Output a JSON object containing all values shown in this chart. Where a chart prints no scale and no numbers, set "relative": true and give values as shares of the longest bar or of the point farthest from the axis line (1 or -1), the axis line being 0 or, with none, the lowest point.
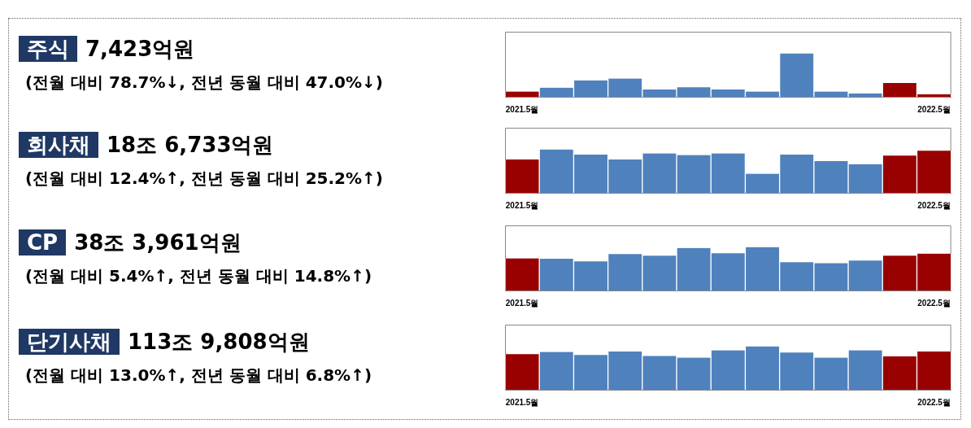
{
  "chart_data": [
    {
      "type": "bar",
      "annotations": [
        "주식",
        "7,423억원",
        "(전월 대비 78.7%↓, 전년 동월 대비 47.0%↓)"
      ],
      "relative": true,
      "categories": [
        "2021.5월",
        null,
        null,
        null,
        null,
        null,
        null,
        null,
        null,
        null,
        null,
        null,
        "2022.5월"
      ],
      "values": [
        0.12,
        0.21,
        0.38,
        0.42,
        0.17,
        0.22,
        0.17,
        0.12,
        1,
        0.12,
        0.08,
        0.32,
        0.06
      ],
      "colors": [
        "#990000",
        "#4f81bd",
        "#4f81bd",
        "#4f81bd",
        "#4f81bd",
        "#4f81bd",
        "#4f81bd",
        "#4f81bd",
        "#4f81bd",
        "#4f81bd",
        "#4f81bd",
        "#990000",
        "#990000"
      ]
    },
    {
      "type": "bar",
      "annotations": [
        "회사채",
        "18조 6,733억원",
        "(전월 대비 12.4%↑, 전년 동월 대비 25.2%↑)"
      ],
      "relative": true,
      "categories": [
        "2021.5월",
        null,
        null,
        null,
        null,
        null,
        null,
        null,
        null,
        null,
        null,
        null,
        "2022.5월"
      ],
      "values": [
        0.77,
        1,
        0.88,
        0.77,
        0.91,
        0.87,
        0.91,
        0.44,
        0.88,
        0.73,
        0.66,
        0.86,
        0.97
      ],
      "colors": [
        "#990000",
        "#4f81bd",
        "#4f81bd",
        "#4f81bd",
        "#4f81bd",
        "#4f81bd",
        "#4f81bd",
        "#4f81bd",
        "#4f81bd",
        "#4f81bd",
        "#4f81bd",
        "#990000",
        "#990000"
      ]
    },
    {
      "type": "bar",
      "annotations": [
        "CP",
        "38조 3,961억원",
        "(전월 대비 5.4%↑, 전년 동월 대비 14.8%↑)"
      ],
      "relative": true,
      "categories": [
        "2021.5월",
        null,
        null,
        null,
        null,
        null,
        null,
        null,
        null,
        null,
        null,
        null,
        "2022.5월"
      ],
      "values": [
        0.74,
        0.73,
        0.67,
        0.84,
        0.8,
        0.98,
        0.86,
        1,
        0.65,
        0.63,
        0.69,
        0.8,
        0.85
      ],
      "colors": [
        "#990000",
        "#4f81bd",
        "#4f81bd",
        "#4f81bd",
        "#4f81bd",
        "#4f81bd",
        "#4f81bd",
        "#4f81bd",
        "#4f81bd",
        "#4f81bd",
        "#4f81bd",
        "#990000",
        "#990000"
      ]
    },
    {
      "type": "bar",
      "annotations": [
        "단기사채",
        "113조 9,808억원",
        "(전월 대비 13.0%↑, 전년 동월 대비 6.8%↑)"
      ],
      "relative": true,
      "categories": [
        "2021.5월",
        null,
        null,
        null,
        null,
        null,
        null,
        null,
        null,
        null,
        null,
        null,
        "2022.5월"
      ],
      "values": [
        0.82,
        0.87,
        0.8,
        0.88,
        0.78,
        0.74,
        0.91,
        1,
        0.86,
        0.74,
        0.91,
        0.77,
        0.88
      ],
      "colors": [
        "#990000",
        "#4f81bd",
        "#4f81bd",
        "#4f81bd",
        "#4f81bd",
        "#4f81bd",
        "#4f81bd",
        "#4f81bd",
        "#4f81bd",
        "#4f81bd",
        "#4f81bd",
        "#990000",
        "#990000"
      ]
    }
  ]
}
